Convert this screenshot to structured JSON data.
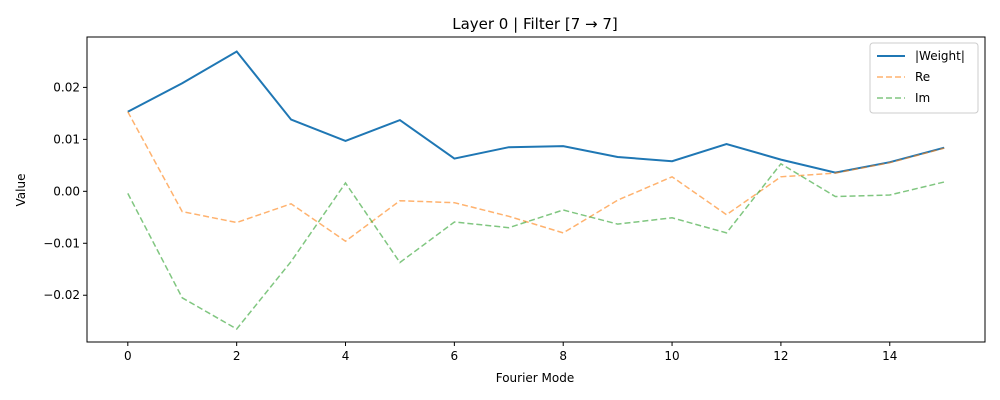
{
  "chart_data": {
    "type": "line",
    "title": "Layer 0 | Filter [7 → 7]",
    "xlabel": "Fourier Mode",
    "ylabel": "Value",
    "xlim": [
      -0.75,
      15.75
    ],
    "ylim": [
      -0.029,
      0.0297
    ],
    "xticks": [
      0,
      2,
      4,
      6,
      8,
      10,
      12,
      14
    ],
    "xtick_labels": [
      "0",
      "2",
      "4",
      "6",
      "8",
      "10",
      "12",
      "14"
    ],
    "yticks": [
      -0.02,
      -0.01,
      0.0,
      0.01,
      0.02
    ],
    "ytick_labels": [
      "−0.02",
      "−0.01",
      "0.00",
      "0.01",
      "0.02"
    ],
    "grid": false,
    "legend_position": "top-right",
    "x": [
      0,
      1,
      2,
      3,
      4,
      5,
      6,
      7,
      8,
      9,
      10,
      11,
      12,
      13,
      14,
      15
    ],
    "series": [
      {
        "name": "|Weight|",
        "color": "#1f77b4",
        "style": "solid",
        "values": [
          0.0153,
          0.0208,
          0.0269,
          0.0138,
          0.0097,
          0.0137,
          0.0063,
          0.0085,
          0.0087,
          0.0066,
          0.0058,
          0.0091,
          0.0061,
          0.0036,
          0.0056,
          0.0084
        ]
      },
      {
        "name": "Re",
        "color": "#ff7f0e",
        "style": "dashed",
        "values": [
          0.0153,
          -0.0039,
          -0.006,
          -0.0024,
          -0.0096,
          -0.0018,
          -0.0022,
          -0.0048,
          -0.008,
          -0.0017,
          0.0028,
          -0.0045,
          0.0028,
          0.0035,
          0.0055,
          0.0083
        ]
      },
      {
        "name": "Im",
        "color": "#2ca02c",
        "style": "dashed",
        "values": [
          -0.0004,
          -0.0205,
          -0.0265,
          -0.0135,
          0.0016,
          -0.0137,
          -0.0059,
          -0.007,
          -0.0036,
          -0.0063,
          -0.0051,
          -0.008,
          0.0053,
          -0.001,
          -0.0007,
          0.0018
        ]
      }
    ]
  }
}
